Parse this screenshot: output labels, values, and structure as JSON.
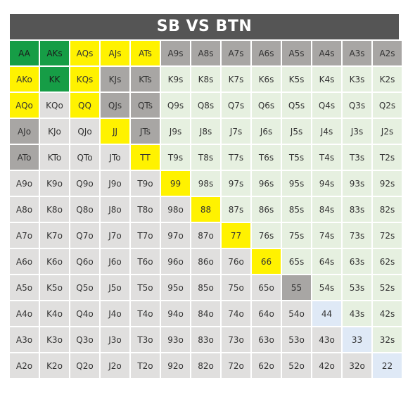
{
  "title": "SB VS BTN",
  "colors": {
    "raise": "#169d46",
    "call": "#fff200",
    "mixed": "#a8a6a4",
    "weak": "#e0dfde",
    "suited": "#e6f0e0",
    "pair": "#dfe9f6",
    "title_bg": "#555555"
  },
  "grid": [
    [
      "AA",
      "AKs",
      "AQs",
      "AJs",
      "ATs",
      "A9s",
      "A8s",
      "A7s",
      "A6s",
      "A5s",
      "A4s",
      "A3s",
      "A2s"
    ],
    [
      "AKo",
      "KK",
      "KQs",
      "KJs",
      "KTs",
      "K9s",
      "K8s",
      "K7s",
      "K6s",
      "K5s",
      "K4s",
      "K3s",
      "K2s"
    ],
    [
      "AQo",
      "KQo",
      "QQ",
      "QJs",
      "QTs",
      "Q9s",
      "Q8s",
      "Q7s",
      "Q6s",
      "Q5s",
      "Q4s",
      "Q3s",
      "Q2s"
    ],
    [
      "AJo",
      "KJo",
      "QJo",
      "JJ",
      "JTs",
      "J9s",
      "J8s",
      "J7s",
      "J6s",
      "J5s",
      "J4s",
      "J3s",
      "J2s"
    ],
    [
      "ATo",
      "KTo",
      "QTo",
      "JTo",
      "TT",
      "T9s",
      "T8s",
      "T7s",
      "T6s",
      "T5s",
      "T4s",
      "T3s",
      "T2s"
    ],
    [
      "A9o",
      "K9o",
      "Q9o",
      "J9o",
      "T9o",
      "99",
      "98s",
      "97s",
      "96s",
      "95s",
      "94s",
      "93s",
      "92s"
    ],
    [
      "A8o",
      "K8o",
      "Q8o",
      "J8o",
      "T8o",
      "98o",
      "88",
      "87s",
      "86s",
      "85s",
      "84s",
      "83s",
      "82s"
    ],
    [
      "A7o",
      "K7o",
      "Q7o",
      "J7o",
      "T7o",
      "97o",
      "87o",
      "77",
      "76s",
      "75s",
      "74s",
      "73s",
      "72s"
    ],
    [
      "A6o",
      "K6o",
      "Q6o",
      "J6o",
      "T6o",
      "96o",
      "86o",
      "76o",
      "66",
      "65s",
      "64s",
      "63s",
      "62s"
    ],
    [
      "A5o",
      "K5o",
      "Q5o",
      "J5o",
      "T5o",
      "95o",
      "85o",
      "75o",
      "65o",
      "55",
      "54s",
      "53s",
      "52s"
    ],
    [
      "A4o",
      "K4o",
      "Q4o",
      "J4o",
      "T4o",
      "94o",
      "84o",
      "74o",
      "64o",
      "54o",
      "44",
      "43s",
      "42s"
    ],
    [
      "A3o",
      "K3o",
      "Q3o",
      "J3o",
      "T3o",
      "93o",
      "83o",
      "73o",
      "63o",
      "53o",
      "43o",
      "33",
      "32s"
    ],
    [
      "A2o",
      "K2o",
      "Q2o",
      "J2o",
      "T2o",
      "92o",
      "82o",
      "72o",
      "62o",
      "52o",
      "42o",
      "32o",
      "22"
    ]
  ],
  "grid_colors": [
    [
      "raise",
      "raise",
      "call",
      "call",
      "call",
      "mixed",
      "mixed",
      "mixed",
      "mixed",
      "mixed",
      "mixed",
      "mixed",
      "mixed"
    ],
    [
      "call",
      "raise",
      "call",
      "mixed",
      "mixed",
      "suited",
      "suited",
      "suited",
      "suited",
      "suited",
      "suited",
      "suited",
      "suited"
    ],
    [
      "call",
      "weak",
      "call",
      "mixed",
      "mixed",
      "suited",
      "suited",
      "suited",
      "suited",
      "suited",
      "suited",
      "suited",
      "suited"
    ],
    [
      "mixed",
      "weak",
      "weak",
      "call",
      "mixed",
      "suited",
      "suited",
      "suited",
      "suited",
      "suited",
      "suited",
      "suited",
      "suited"
    ],
    [
      "mixed",
      "weak",
      "weak",
      "weak",
      "call",
      "suited",
      "suited",
      "suited",
      "suited",
      "suited",
      "suited",
      "suited",
      "suited"
    ],
    [
      "weak",
      "weak",
      "weak",
      "weak",
      "weak",
      "call",
      "suited",
      "suited",
      "suited",
      "suited",
      "suited",
      "suited",
      "suited"
    ],
    [
      "weak",
      "weak",
      "weak",
      "weak",
      "weak",
      "weak",
      "call",
      "suited",
      "suited",
      "suited",
      "suited",
      "suited",
      "suited"
    ],
    [
      "weak",
      "weak",
      "weak",
      "weak",
      "weak",
      "weak",
      "weak",
      "call",
      "suited",
      "suited",
      "suited",
      "suited",
      "suited"
    ],
    [
      "weak",
      "weak",
      "weak",
      "weak",
      "weak",
      "weak",
      "weak",
      "weak",
      "call",
      "suited",
      "suited",
      "suited",
      "suited"
    ],
    [
      "weak",
      "weak",
      "weak",
      "weak",
      "weak",
      "weak",
      "weak",
      "weak",
      "weak",
      "mixed",
      "suited",
      "suited",
      "suited"
    ],
    [
      "weak",
      "weak",
      "weak",
      "weak",
      "weak",
      "weak",
      "weak",
      "weak",
      "weak",
      "weak",
      "pair",
      "suited",
      "suited"
    ],
    [
      "weak",
      "weak",
      "weak",
      "weak",
      "weak",
      "weak",
      "weak",
      "weak",
      "weak",
      "weak",
      "weak",
      "pair",
      "suited"
    ],
    [
      "weak",
      "weak",
      "weak",
      "weak",
      "weak",
      "weak",
      "weak",
      "weak",
      "weak",
      "weak",
      "weak",
      "weak",
      "pair"
    ]
  ]
}
